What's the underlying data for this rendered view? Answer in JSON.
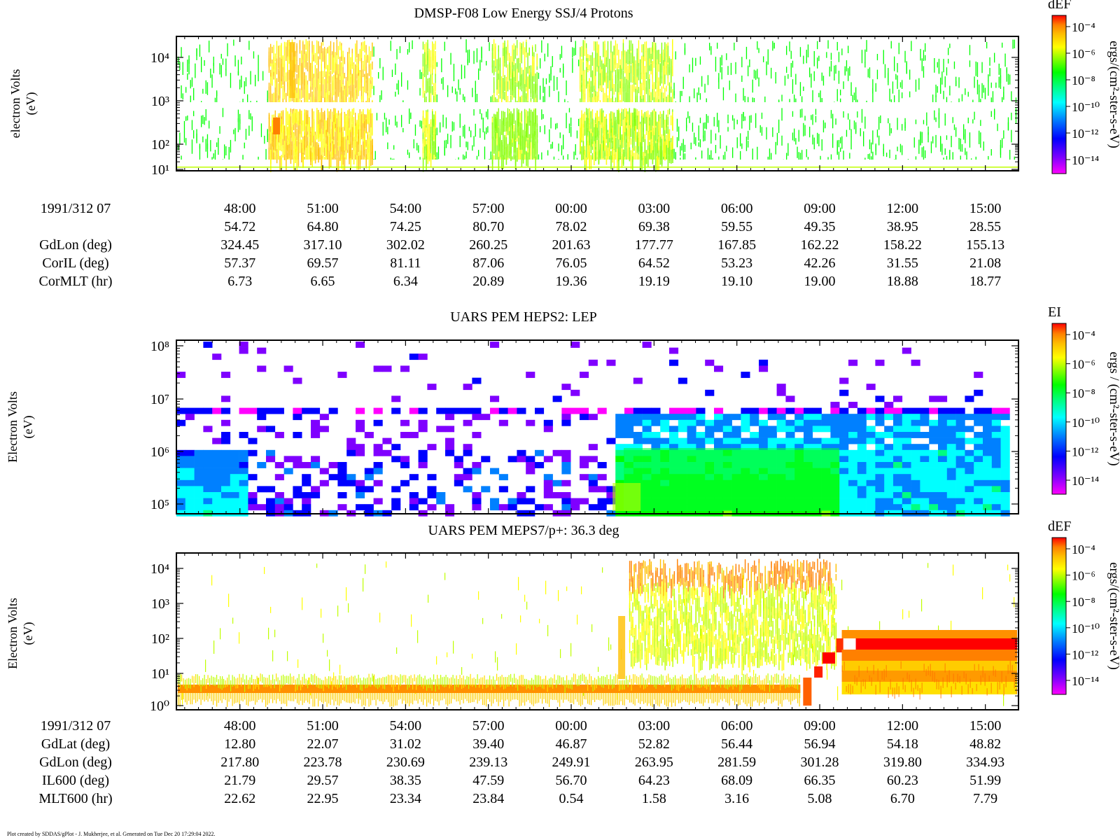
{
  "footer": "Plot created by SDDAS/gPlot - J. Mukherjee, et al.  Generated on Tue Dec 20 17:29:04 2022.",
  "colors": {
    "scale": [
      "#ff00ff",
      "#7f00ff",
      "#0000ff",
      "#0080ff",
      "#00ffff",
      "#00ff80",
      "#00ff00",
      "#80ff00",
      "#ffff00",
      "#ffbf00",
      "#ff8000",
      "#ff0000"
    ]
  },
  "time_ticks": [
    "48:00",
    "51:00",
    "54:00",
    "57:00",
    "00:00",
    "03:00",
    "06:00",
    "09:00",
    "12:00",
    "15:00"
  ],
  "panels": [
    {
      "title": "DMSP-F08 Low Energy SSJ/4 Protons",
      "ylabel": "electron Volts",
      "yunit": "(eV)",
      "colorbar": {
        "title": "dEF",
        "label": "ergs/(cm²-ster-s-eV)",
        "ticks": [
          "10⁻⁴",
          "10⁻⁶",
          "10⁻⁸",
          "10⁻¹⁰",
          "10⁻¹²",
          "10⁻¹⁴"
        ]
      },
      "yticks": [
        "10⁴",
        "10³",
        "10²",
        "10¹"
      ]
    },
    {
      "title": "UARS PEM HEPS2: LEP",
      "ylabel": "Electron Volts",
      "yunit": "(eV)",
      "colorbar": {
        "title": "EI",
        "label": "ergs / (cm²-ster-s-eV)",
        "ticks": [
          "10⁻⁴",
          "10⁻⁶",
          "10⁻⁸",
          "10⁻¹⁰",
          "10⁻¹²",
          "10⁻¹⁴"
        ]
      },
      "yticks": [
        "10⁸",
        "10⁷",
        "10⁶",
        "10⁵"
      ]
    },
    {
      "title": "UARS PEM MEPS7/p+: 36.3 deg",
      "ylabel": "Electron Volts",
      "yunit": "(eV)",
      "colorbar": {
        "title": "dEF",
        "label": "ergs/(cm²-ster-s-eV)",
        "ticks": [
          "10⁻⁴",
          "10⁻⁶",
          "10⁻⁸",
          "10⁻¹⁰",
          "10⁻¹²",
          "10⁻¹⁴"
        ]
      },
      "yticks": [
        "10⁴",
        "10³",
        "10²",
        "10¹",
        "10⁰"
      ]
    }
  ],
  "ephemeris": [
    {
      "date_label": "1991/312 07",
      "rows": [
        {
          "label": "",
          "values": [
            "54.72",
            "64.80",
            "74.25",
            "80.70",
            "78.02",
            "69.38",
            "59.55",
            "49.35",
            "38.95",
            "28.55"
          ]
        },
        {
          "label": "GdLon (deg)",
          "values": [
            "324.45",
            "317.10",
            "302.02",
            "260.25",
            "201.63",
            "177.77",
            "167.85",
            "162.22",
            "158.22",
            "155.13"
          ]
        },
        {
          "label": "CorIL (deg)",
          "values": [
            "57.37",
            "69.57",
            "81.11",
            "87.06",
            "76.05",
            "64.52",
            "53.23",
            "42.26",
            "31.55",
            "21.08"
          ]
        },
        {
          "label": "CorMLT (hr)",
          "values": [
            "6.73",
            "6.65",
            "6.34",
            "20.89",
            "19.36",
            "19.19",
            "19.10",
            "19.00",
            "18.88",
            "18.77"
          ]
        }
      ]
    },
    {
      "date_label": "1991/312 07",
      "rows": [
        {
          "label": "GdLat (deg)",
          "values": [
            "12.80",
            "22.07",
            "31.02",
            "39.40",
            "46.87",
            "52.82",
            "56.44",
            "56.94",
            "54.18",
            "48.82"
          ]
        },
        {
          "label": "GdLon (deg)",
          "values": [
            "217.80",
            "223.78",
            "230.69",
            "239.13",
            "249.91",
            "263.95",
            "281.59",
            "301.28",
            "319.80",
            "334.93"
          ]
        },
        {
          "label": "IL600 (deg)",
          "values": [
            "21.79",
            "29.57",
            "38.35",
            "47.59",
            "56.70",
            "64.23",
            "68.09",
            "66.35",
            "60.23",
            "51.99"
          ]
        },
        {
          "label": "MLT600 (hr)",
          "values": [
            "22.62",
            "22.95",
            "23.34",
            "23.84",
            "0.54",
            "1.58",
            "3.16",
            "5.08",
            "6.70",
            "7.79"
          ]
        }
      ]
    }
  ],
  "chart_data": [
    {
      "type": "heatmap",
      "title": "DMSP-F08 Low Energy SSJ/4 Protons",
      "xlabel": "1991/312 07",
      "ylabel": "electron Volts (eV)",
      "y_scale": "log",
      "ylim": [
        10,
        30000
      ],
      "yticks": [
        10,
        100,
        1000,
        10000
      ],
      "x_ticks": [
        "48:00",
        "51:00",
        "54:00",
        "57:00",
        "00:00",
        "03:00",
        "06:00",
        "09:00",
        "12:00",
        "15:00"
      ],
      "colorbar": {
        "quantity": "dEF",
        "unit": "ergs/(cm2-ster-s-eV)",
        "range": [
          1e-15,
          0.001
        ],
        "log": true
      },
      "regions": [
        {
          "time": "49:30-53:00",
          "energy_eV": [
            30,
            30000
          ],
          "dEF": 1e-06
        },
        {
          "time": "49:45-50:30",
          "energy_eV": [
            100,
            500
          ],
          "dEF": 1e-05
        },
        {
          "time": "55:45-56:15",
          "energy_eV": [
            30,
            30000
          ],
          "dEF": 1e-07
        },
        {
          "time": "58:30-00:30",
          "energy_eV": [
            30,
            30000
          ],
          "dEF": 1e-07
        },
        {
          "time": "01:00-04:00",
          "energy_eV": [
            30,
            30000
          ],
          "dEF": 1e-07
        }
      ],
      "background": {
        "energy_eV": [
          30,
          30000
        ],
        "dEF": 1e-08,
        "note": "sparse"
      }
    },
    {
      "type": "heatmap",
      "title": "UARS PEM HEPS2: LEP",
      "ylabel": "Electron Volts (eV)",
      "y_scale": "log",
      "ylim": [
        80000,
        150000000
      ],
      "yticks": [
        100000,
        1000000,
        10000000,
        100000000
      ],
      "x_ticks": [
        "48:00",
        "51:00",
        "54:00",
        "57:00",
        "00:00",
        "03:00",
        "06:00",
        "09:00",
        "12:00",
        "15:00"
      ],
      "colorbar": {
        "quantity": "EI",
        "unit": "ergs / (cm2-ster-s-eV)",
        "range": [
          1e-15,
          0.001
        ],
        "log": true
      },
      "regions": [
        {
          "time": "46:00-47:30",
          "energy_eV": [
            80000,
            900000
          ],
          "EI": 1e-11
        },
        {
          "time": "01:30-09:45",
          "energy_eV": [
            80000,
            900000
          ],
          "EI": 1e-09
        },
        {
          "time": "09:45-15:00",
          "energy_eV": [
            80000,
            3000000
          ],
          "EI": 1e-11
        },
        {
          "time": "46:00-15:00",
          "energy_eV": [
            6000000,
            7000000
          ],
          "EI": 1e-13
        }
      ]
    },
    {
      "type": "heatmap",
      "title": "UARS PEM MEPS7/p+: 36.3 deg",
      "ylabel": "Electron Volts (eV)",
      "y_scale": "log",
      "ylim": [
        1,
        30000
      ],
      "yticks": [
        1,
        10,
        100,
        1000,
        10000
      ],
      "x_ticks": [
        "48:00",
        "51:00",
        "54:00",
        "57:00",
        "00:00",
        "03:00",
        "06:00",
        "09:00",
        "12:00",
        "15:00"
      ],
      "colorbar": {
        "quantity": "dEF",
        "unit": "ergs/(cm2-ster-s-eV)",
        "range": [
          1e-15,
          0.001
        ],
        "log": true
      },
      "regions": [
        {
          "time": "46:00-08:00",
          "energy_eV": [
            2.5,
            4
          ],
          "dEF": 1e-05
        },
        {
          "time": "02:00-09:30",
          "energy_eV": [
            3000,
            25000
          ],
          "dEF": 1e-06
        },
        {
          "time": "09:45-15:00",
          "energy_eV": [
            40,
            100
          ],
          "dEF": 0.0001
        },
        {
          "time": "09:45-15:00",
          "energy_eV": [
            3,
            40
          ],
          "dEF": 1e-05
        }
      ]
    }
  ]
}
